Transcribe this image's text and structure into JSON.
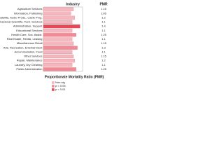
{
  "chart_data": {
    "type": "bar",
    "header": "Industry",
    "value_header": "PMR",
    "xlabel": "Proportionate Mortality Ratio (PMR)",
    "categories": [
      "Agriculture Services",
      "Information, Publishing",
      "TV, Radio, Satellite, Audio Prods., Cable Prog.",
      "Professional Scientific, Tech. Services",
      "Administration, Support",
      "Educational Services",
      "Health Care, Soc. Assist.",
      "Real Estate, Rental, Leasing",
      "Miscellaneous Retail",
      "Arts, Recreation, Entertainment",
      "Accommodation, Food",
      "Other Services",
      "Repair, Maintenance",
      "Laundry, Dry Cleaning",
      "Public Administration"
    ],
    "values": [
      1.15,
      1.05,
      1.2,
      1.1,
      1.4,
      1.1,
      1.25,
      1.1,
      1.15,
      1.3,
      1.1,
      1.15,
      1.2,
      1.1,
      1.25
    ],
    "colors": [
      "#f4b6bf",
      "#f4b6bf",
      "#f4b6bf",
      "#f4b6bf",
      "#e8485a",
      "#f4b6bf",
      "#f08a96",
      "#f4b6bf",
      "#f4b6bf",
      "#f08a96",
      "#f4b6bf",
      "#f4b6bf",
      "#f4b6bf",
      "#f4b6bf",
      "#f08a96"
    ],
    "xlim": [
      0,
      1.5
    ],
    "legend": [
      {
        "name": "Non-sig",
        "color": "#f4b6bf"
      },
      {
        "name": "p < 0.05",
        "color": "#f08a96"
      },
      {
        "name": "p < 0.01",
        "color": "#e8485a"
      }
    ]
  }
}
